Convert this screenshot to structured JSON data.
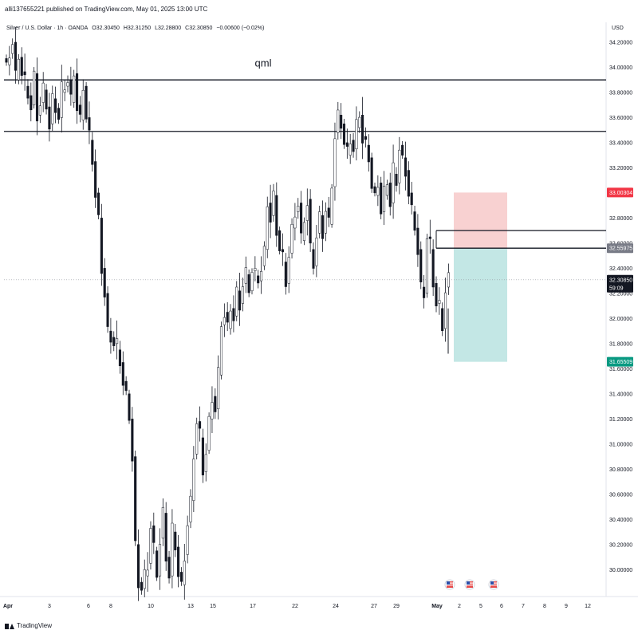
{
  "header": {
    "publisher": "alli137655221 published on TradingView.com, May 01, 2025 13:00 UTC"
  },
  "legend": {
    "symbol": "Silver / U.S. Dollar · 1h · OANDA",
    "open": "O32.30450",
    "high": "H32.31250",
    "low": "L32.28800",
    "close": "C32.30850",
    "change": "−0.00600 (−0.02%)"
  },
  "currency": "USD",
  "footer": {
    "logo_text": "TradingView"
  },
  "colors": {
    "candle": "#131722",
    "stop_zone": "#f7c9c9",
    "target_zone": "#b9e3e0",
    "stop_tag": "#f23645",
    "target_tag": "#089981",
    "entry_tag": "#787b86",
    "price_tag": "#131722"
  },
  "chart_data": {
    "type": "candlestick",
    "title": "",
    "ylabel": "",
    "xlabel": "",
    "ylim": [
      29.82,
      34.26
    ],
    "x_ticks": [
      "Apr",
      "3",
      "6",
      "8",
      "10",
      "13",
      "15",
      "17",
      "22",
      "24",
      "27",
      "29",
      "May",
      "2",
      "5",
      "6",
      "7",
      "8",
      "9",
      "12"
    ],
    "y_ticks": [
      "30.00000",
      "30.20000",
      "30.40000",
      "30.60000",
      "30.80000",
      "31.00000",
      "31.20000",
      "31.40000",
      "31.60000",
      "31.80000",
      "32.00000",
      "32.20000",
      "32.40000",
      "32.60000",
      "32.80000",
      "33.00000",
      "33.20000",
      "33.40000",
      "33.60000",
      "33.80000",
      "34.00000",
      "34.20000"
    ],
    "series": [
      {
        "path": [
          [
            0,
            34.02
          ],
          [
            2,
            34.2
          ],
          [
            3,
            33.9
          ],
          [
            4,
            34.08
          ],
          [
            6,
            33.85
          ],
          [
            8,
            33.7
          ],
          [
            9,
            33.95
          ],
          [
            10,
            33.62
          ],
          [
            12,
            33.82
          ],
          [
            14,
            33.55
          ],
          [
            15,
            33.75
          ],
          [
            17,
            33.6
          ],
          [
            18,
            33.8
          ],
          [
            20,
            33.9
          ],
          [
            21,
            33.72
          ],
          [
            22,
            33.95
          ],
          [
            23,
            33.7
          ],
          [
            24,
            33.58
          ],
          [
            25,
            33.85
          ],
          [
            26,
            33.6
          ],
          [
            27,
            33.42
          ],
          [
            28,
            33.25
          ],
          [
            29,
            33.0
          ],
          [
            30,
            32.8
          ],
          [
            31,
            32.4
          ],
          [
            32,
            32.2
          ],
          [
            33,
            31.9
          ],
          [
            34,
            31.85
          ],
          [
            36,
            31.75
          ],
          [
            37,
            31.65
          ],
          [
            38,
            31.5
          ],
          [
            39,
            31.4
          ],
          [
            40,
            31.2
          ],
          [
            41,
            30.9
          ],
          [
            42,
            30.2
          ],
          [
            43,
            29.9
          ],
          [
            44,
            29.85
          ],
          [
            46,
            30.05
          ],
          [
            47,
            30.35
          ],
          [
            48,
            30.15
          ],
          [
            49,
            29.95
          ],
          [
            50,
            30.25
          ],
          [
            51,
            30.45
          ],
          [
            52,
            30.1
          ],
          [
            53,
            29.95
          ],
          [
            54,
            30.3
          ],
          [
            55,
            30.18
          ],
          [
            56,
            29.98
          ],
          [
            57,
            29.88
          ],
          [
            58,
            30.12
          ],
          [
            59,
            30.38
          ],
          [
            60,
            30.55
          ],
          [
            61,
            30.92
          ],
          [
            62,
            31.18
          ],
          [
            63,
            31.05
          ],
          [
            64,
            30.78
          ],
          [
            65,
            30.95
          ],
          [
            66,
            31.2
          ],
          [
            67,
            31.38
          ],
          [
            68,
            31.28
          ],
          [
            69,
            31.55
          ],
          [
            70,
            31.95
          ],
          [
            71,
            32.05
          ],
          [
            72,
            31.92
          ],
          [
            73,
            32.08
          ],
          [
            74,
            32.02
          ],
          [
            75,
            32.22
          ],
          [
            76,
            32.12
          ],
          [
            77,
            32.28
          ],
          [
            78,
            32.35
          ],
          [
            79,
            32.22
          ],
          [
            80,
            32.38
          ],
          [
            82,
            32.3
          ],
          [
            83,
            32.42
          ],
          [
            84,
            32.55
          ],
          [
            85,
            32.92
          ],
          [
            86,
            32.82
          ],
          [
            87,
            32.98
          ],
          [
            88,
            32.7
          ],
          [
            89,
            32.55
          ],
          [
            90,
            32.45
          ],
          [
            91,
            32.28
          ],
          [
            92,
            32.52
          ],
          [
            93,
            32.72
          ],
          [
            94,
            32.85
          ],
          [
            95,
            32.92
          ],
          [
            96,
            32.62
          ],
          [
            97,
            32.78
          ],
          [
            98,
            32.95
          ],
          [
            99,
            32.55
          ],
          [
            100,
            32.42
          ],
          [
            101,
            32.68
          ],
          [
            102,
            32.82
          ],
          [
            103,
            32.68
          ],
          [
            104,
            32.88
          ],
          [
            105,
            32.75
          ],
          [
            106,
            33.05
          ],
          [
            107,
            33.48
          ],
          [
            108,
            33.62
          ],
          [
            109,
            33.55
          ],
          [
            110,
            33.4
          ],
          [
            111,
            33.3
          ],
          [
            112,
            33.42
          ],
          [
            113,
            33.35
          ],
          [
            114,
            33.52
          ],
          [
            115,
            33.62
          ],
          [
            116,
            33.45
          ],
          [
            117,
            33.38
          ],
          [
            118,
            33.28
          ],
          [
            119,
            33.05
          ],
          [
            120,
            32.98
          ],
          [
            121,
            33.08
          ],
          [
            122,
            32.85
          ],
          [
            123,
            32.98
          ],
          [
            124,
            33.08
          ],
          [
            125,
            32.92
          ],
          [
            126,
            33.15
          ],
          [
            127,
            33.08
          ],
          [
            128,
            33.38
          ],
          [
            129,
            33.28
          ],
          [
            130,
            33.18
          ],
          [
            131,
            33.0
          ],
          [
            132,
            32.85
          ],
          [
            133,
            32.72
          ],
          [
            134,
            32.55
          ],
          [
            135,
            32.25
          ],
          [
            136,
            32.2
          ],
          [
            137,
            32.65
          ],
          [
            138,
            32.55
          ],
          [
            139,
            32.28
          ],
          [
            140,
            32.12
          ],
          [
            141,
            32.08
          ],
          [
            142,
            31.92
          ],
          [
            143,
            32.25
          ],
          [
            144,
            32.32
          ]
        ],
        "noise": [
          0.04,
          0.12,
          0.06,
          0.15,
          0.05,
          0.1,
          0.18,
          0.07,
          0.13,
          0.04,
          0.16,
          0.09,
          0.11,
          0.06,
          0.14,
          0.08,
          0.12,
          0.05,
          0.17,
          0.1,
          0.07,
          0.13,
          0.06,
          0.15,
          0.09,
          0.11,
          0.04,
          0.16,
          0.08,
          0.12,
          0.05,
          0.14,
          0.1,
          0.07,
          0.13,
          0.06,
          0.18,
          0.09,
          0.11,
          0.05
        ]
      }
    ],
    "annotations": [
      {
        "type": "text",
        "label": "qml",
        "price": 33.98
      },
      {
        "type": "hline",
        "price": 33.9
      },
      {
        "type": "hline",
        "price": 33.49
      },
      {
        "type": "hline",
        "price": 32.7
      },
      {
        "type": "hline",
        "price": 32.56
      },
      {
        "type": "zone",
        "kind": "stop",
        "from": 32.56,
        "to": 33.00304
      },
      {
        "type": "zone",
        "kind": "target",
        "from": 31.65509,
        "to": 32.56
      }
    ],
    "price_tags": [
      {
        "label": "33.00304",
        "price": 33.00304,
        "kind": "stop"
      },
      {
        "label": "32.55975",
        "price": 32.55975,
        "kind": "entry"
      },
      {
        "label": "32.30850",
        "price": 32.3085,
        "sub": "59:09",
        "kind": "last"
      },
      {
        "label": "31.65509",
        "price": 31.65509,
        "kind": "target"
      }
    ],
    "calendar_flags": [
      "us-flag-icon",
      "us-flag-icon",
      "us-flag-icon"
    ],
    "grid": false,
    "legend_position": "top-left"
  }
}
